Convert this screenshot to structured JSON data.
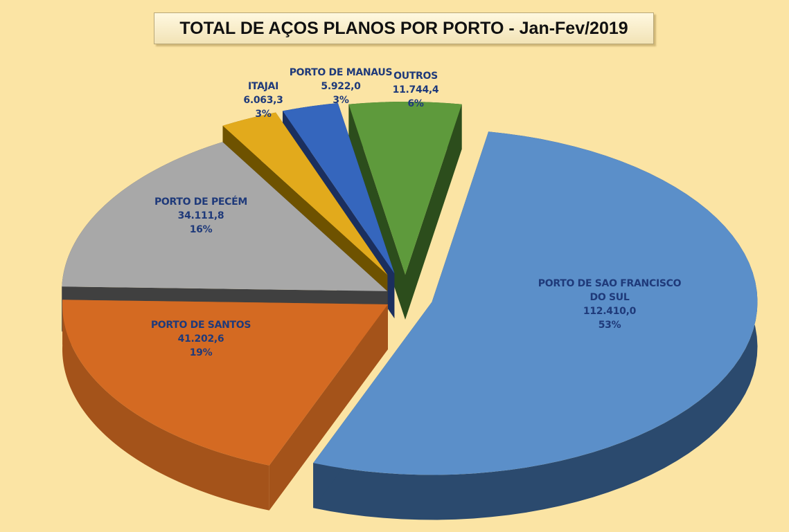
{
  "chart_data": {
    "type": "pie",
    "title": "TOTAL DE AÇOS PLANOS POR PORTO - Jan-Fev/2019",
    "categories": [
      "PORTO DE SAO FRANCISCO DO SUL",
      "PORTO DE SANTOS",
      "PORTO DE PECÉM",
      "ITAJAI",
      "PORTO DE MANAUS",
      "OUTROS"
    ],
    "values": [
      112410.0,
      41202.6,
      34111.8,
      6063.3,
      5922.0,
      11744.4
    ],
    "value_labels": [
      "112.410,0",
      "41.202,6",
      "34.111,8",
      "6.063,3",
      "5.922,0",
      "11.744,4"
    ],
    "percents": [
      53,
      19,
      16,
      3,
      3,
      6
    ],
    "percent_labels": [
      "53%",
      "19%",
      "16%",
      "3%",
      "3%",
      "6%"
    ],
    "colors": [
      "#5b8fc9",
      "#d46a22",
      "#a8a8a8",
      "#e2aa1c",
      "#3566bd",
      "#5e9a3c"
    ],
    "side_colors": [
      "#2b4a6e",
      "#a4531a",
      "#404040",
      "#6e5200",
      "#1b2f5e",
      "#2c4d1c"
    ]
  }
}
